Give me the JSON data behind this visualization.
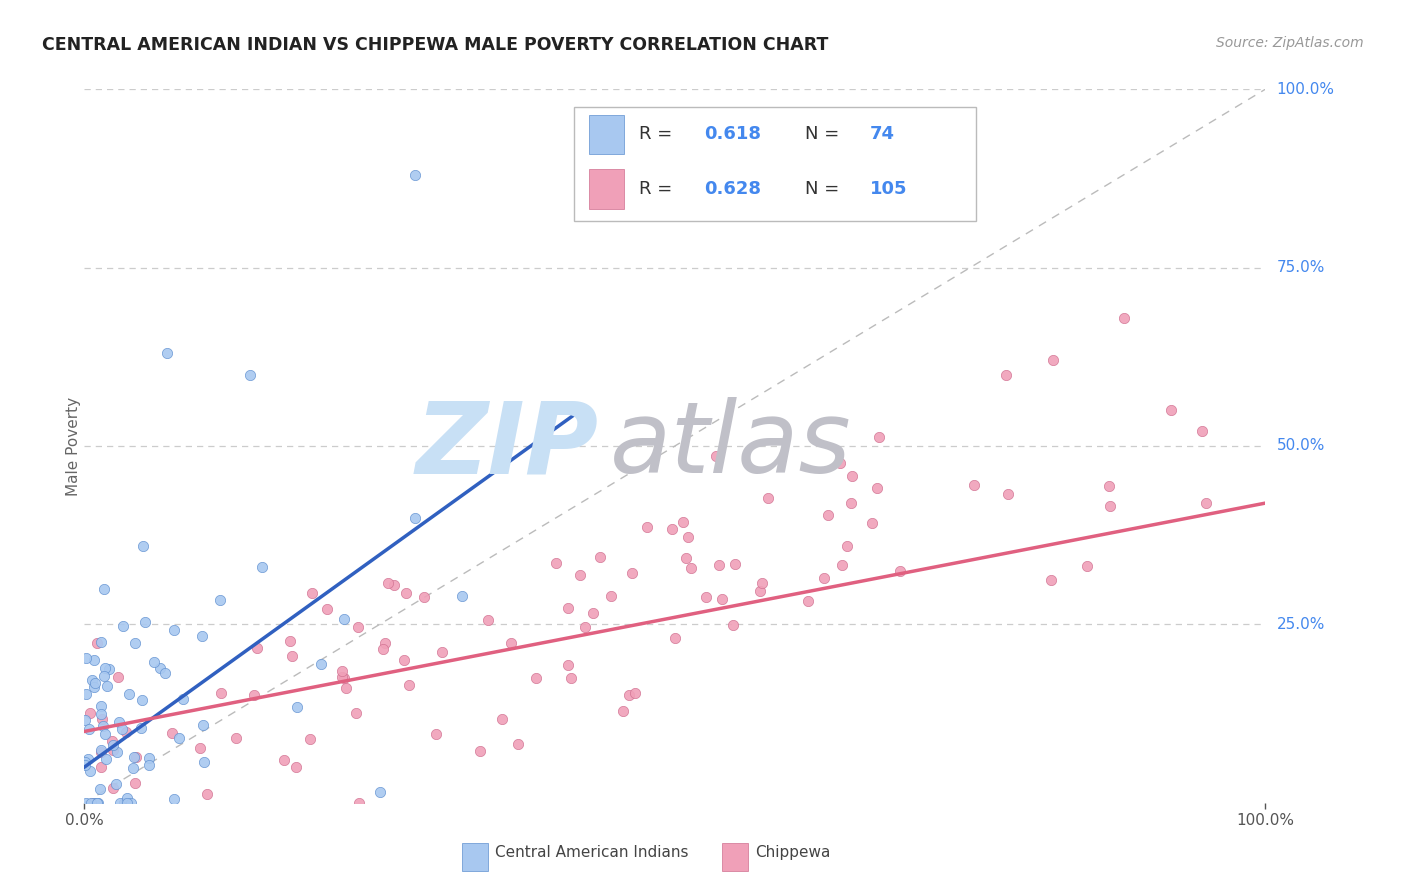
{
  "title": "CENTRAL AMERICAN INDIAN VS CHIPPEWA MALE POVERTY CORRELATION CHART",
  "source": "Source: ZipAtlas.com",
  "ylabel": "Male Poverty",
  "legend_label1": "Central American Indians",
  "legend_label2": "Chippewa",
  "color_blue": "#A8C8F0",
  "color_pink": "#F0A0B8",
  "color_blue_line": "#3060C0",
  "color_pink_line": "#E06080",
  "color_blue_edge": "#6090D0",
  "color_pink_edge": "#D07090",
  "background_color": "#FFFFFF",
  "grid_color": "#CCCCCC",
  "watermark_zip_color": "#C8E0F5",
  "watermark_atlas_color": "#C0C0C8",
  "right_label_color": "#4488EE",
  "title_color": "#222222",
  "source_color": "#999999",
  "ylabel_color": "#666666",
  "xtick_color": "#555555"
}
